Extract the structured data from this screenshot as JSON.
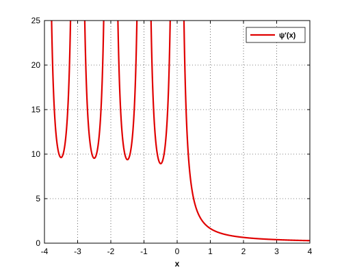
{
  "chart_data": {
    "type": "line",
    "title": "",
    "xlabel": "x",
    "ylabel": "",
    "xlim": [
      -4,
      4
    ],
    "ylim": [
      0,
      25
    ],
    "xticks": [
      -4,
      -3,
      -2,
      -1,
      0,
      1,
      2,
      3,
      4
    ],
    "yticks": [
      0,
      5,
      10,
      15,
      20,
      25
    ],
    "grid": true,
    "legend_position": "top-right",
    "series": [
      {
        "name": "ψ'(x)",
        "color": "#e00000",
        "function": "trigamma",
        "x_range": [
          -4,
          4
        ],
        "local_minima": [
          {
            "x": -3.55,
            "y": 9.6
          },
          {
            "x": -2.54,
            "y": 9.55
          },
          {
            "x": -1.54,
            "y": 9.4
          },
          {
            "x": -0.54,
            "y": 9.0
          }
        ],
        "asymptotes": [
          -4,
          -3,
          -2,
          -1,
          0
        ],
        "sample_points": [
          {
            "x": 0.25,
            "y": 17.2
          },
          {
            "x": 0.5,
            "y": 4.93
          },
          {
            "x": 1.0,
            "y": 1.64
          },
          {
            "x": 2.0,
            "y": 0.64
          },
          {
            "x": 3.0,
            "y": 0.39
          },
          {
            "x": 4.0,
            "y": 0.28
          }
        ]
      }
    ]
  }
}
